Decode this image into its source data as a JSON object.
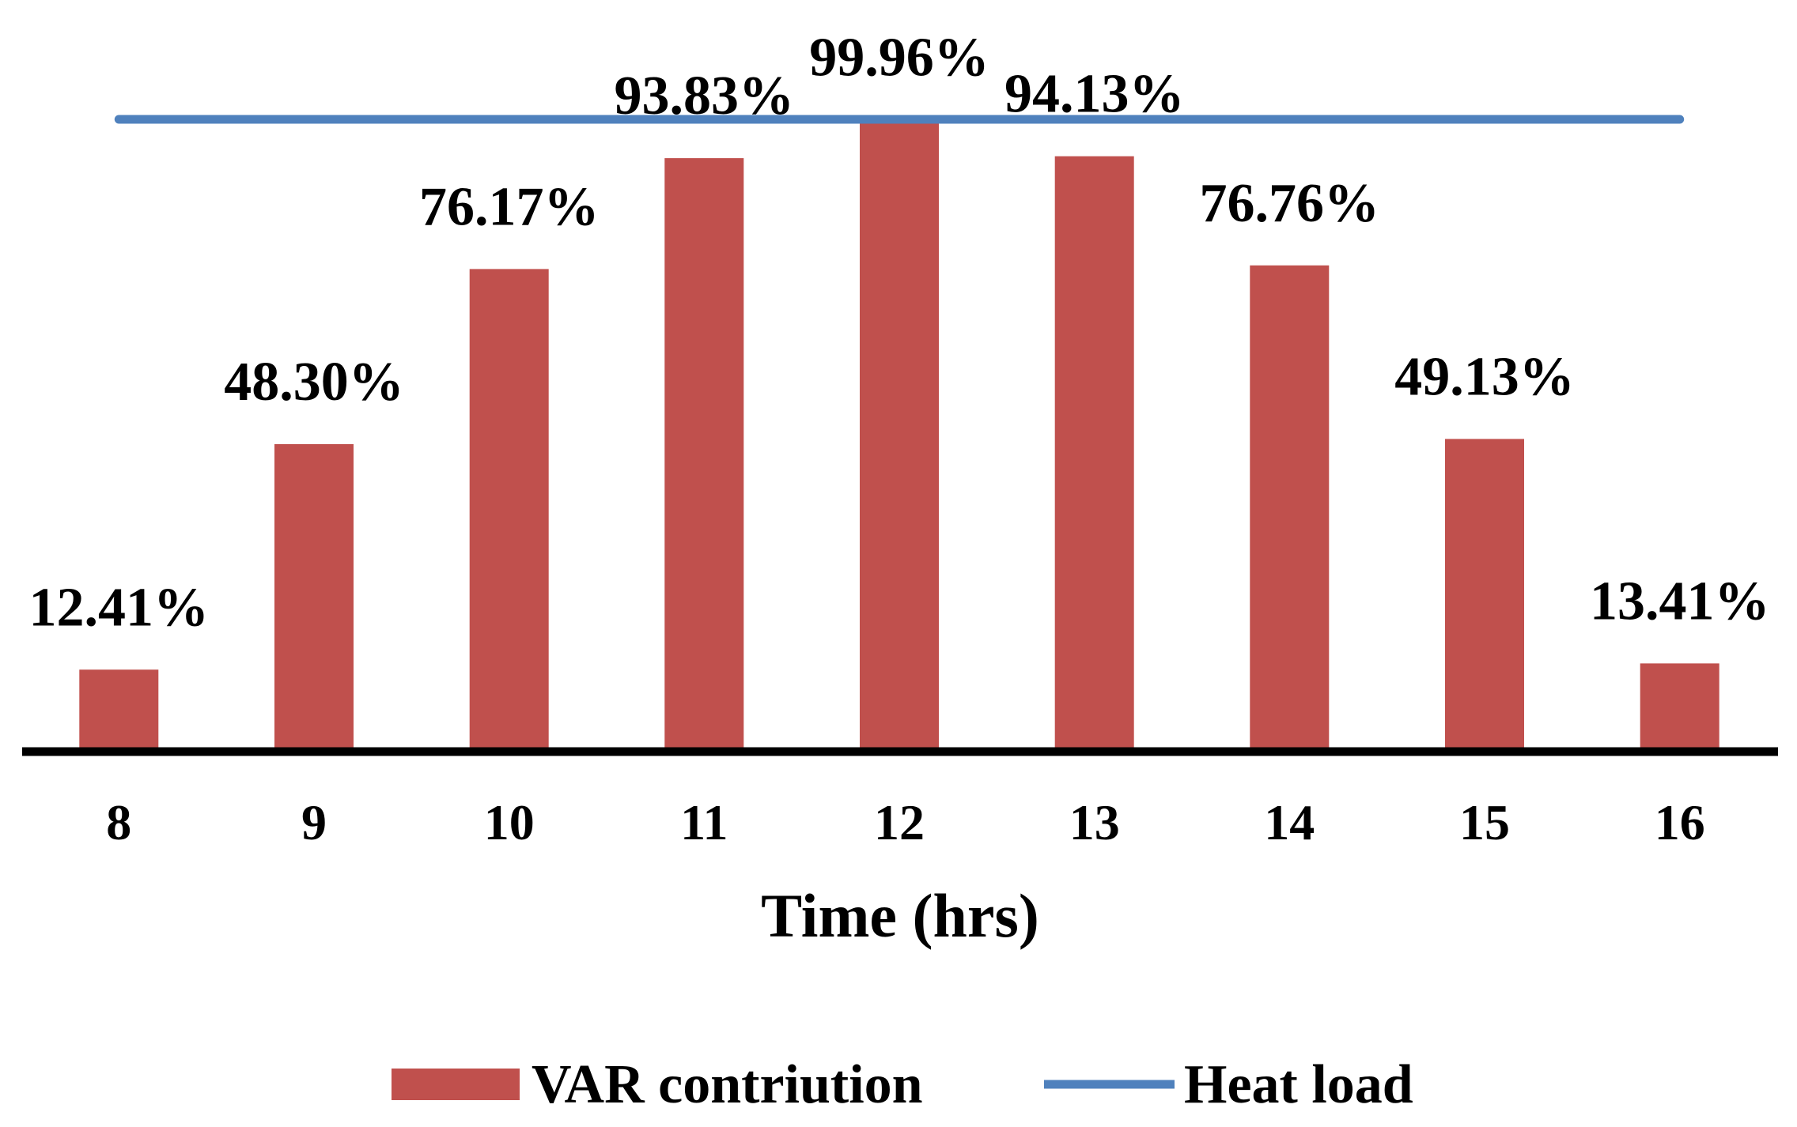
{
  "chart_data": {
    "type": "bar",
    "title": "",
    "xlabel": "Time (hrs)",
    "ylabel": "",
    "categories": [
      "8",
      "9",
      "10",
      "11",
      "12",
      "13",
      "14",
      "15",
      "16"
    ],
    "series": [
      {
        "name": "VAR contriution",
        "type": "bar",
        "color": "#C0504D",
        "values": [
          12.41,
          48.3,
          76.17,
          93.83,
          99.96,
          94.13,
          76.76,
          49.13,
          13.41
        ],
        "labels": [
          "12.41%",
          "48.30%",
          "76.17%",
          "93.83%",
          "99.96%",
          "94.13%",
          "76.76%",
          "49.13%",
          "13.41%"
        ]
      },
      {
        "name": "Heat load",
        "type": "line",
        "color": "#4F81BD",
        "values": [
          100,
          100,
          100,
          100,
          100,
          100,
          100,
          100,
          100
        ]
      }
    ],
    "ylim": [
      0,
      100
    ],
    "grid": false,
    "legend_position": "bottom"
  }
}
